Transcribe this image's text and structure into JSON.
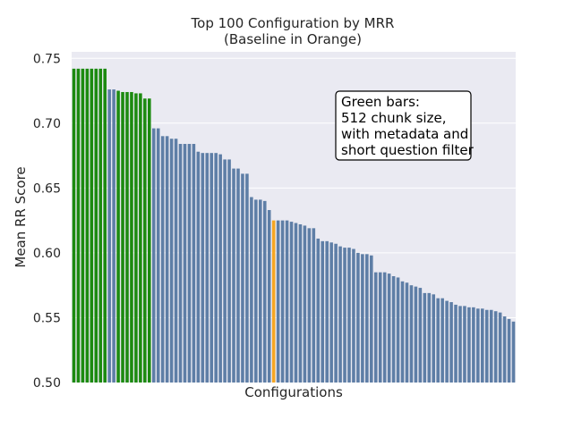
{
  "chart_data": {
    "type": "bar",
    "title": [
      "Top 100 Configuration by MRR",
      "(Baseline in Orange)"
    ],
    "xlabel": "Configurations",
    "ylabel": "Mean RR Score",
    "ylim": [
      0.5,
      0.755
    ],
    "yticks": [
      "0.50",
      "0.55",
      "0.60",
      "0.65",
      "0.70",
      "0.75"
    ],
    "grid": true,
    "colors": {
      "default": "#5e7ea6",
      "highlight": "#1c8a10",
      "baseline": "#f5a623",
      "background": "#eaeaf2",
      "grid": "#ffffff"
    },
    "highlight_indices": [
      0,
      1,
      2,
      3,
      4,
      5,
      6,
      7,
      10,
      11,
      12,
      13,
      14,
      15,
      16,
      17
    ],
    "baseline_index": 45,
    "values": [
      0.742,
      0.742,
      0.742,
      0.742,
      0.742,
      0.742,
      0.742,
      0.742,
      0.726,
      0.726,
      0.725,
      0.724,
      0.724,
      0.724,
      0.723,
      0.723,
      0.719,
      0.719,
      0.696,
      0.696,
      0.69,
      0.69,
      0.688,
      0.688,
      0.684,
      0.684,
      0.684,
      0.684,
      0.678,
      0.677,
      0.677,
      0.677,
      0.677,
      0.676,
      0.672,
      0.672,
      0.665,
      0.665,
      0.661,
      0.661,
      0.643,
      0.641,
      0.641,
      0.64,
      0.633,
      0.625,
      0.625,
      0.625,
      0.625,
      0.624,
      0.623,
      0.622,
      0.621,
      0.619,
      0.619,
      0.611,
      0.609,
      0.609,
      0.608,
      0.607,
      0.605,
      0.604,
      0.604,
      0.603,
      0.6,
      0.599,
      0.599,
      0.598,
      0.585,
      0.585,
      0.585,
      0.584,
      0.582,
      0.581,
      0.578,
      0.577,
      0.575,
      0.574,
      0.573,
      0.569,
      0.569,
      0.568,
      0.565,
      0.565,
      0.563,
      0.562,
      0.56,
      0.559,
      0.559,
      0.558,
      0.558,
      0.557,
      0.557,
      0.556,
      0.556,
      0.555,
      0.554,
      0.551,
      0.549,
      0.547
    ],
    "annotation": [
      "Green bars:",
      "512 chunk size,",
      "with metadata and",
      "short question filter"
    ]
  }
}
